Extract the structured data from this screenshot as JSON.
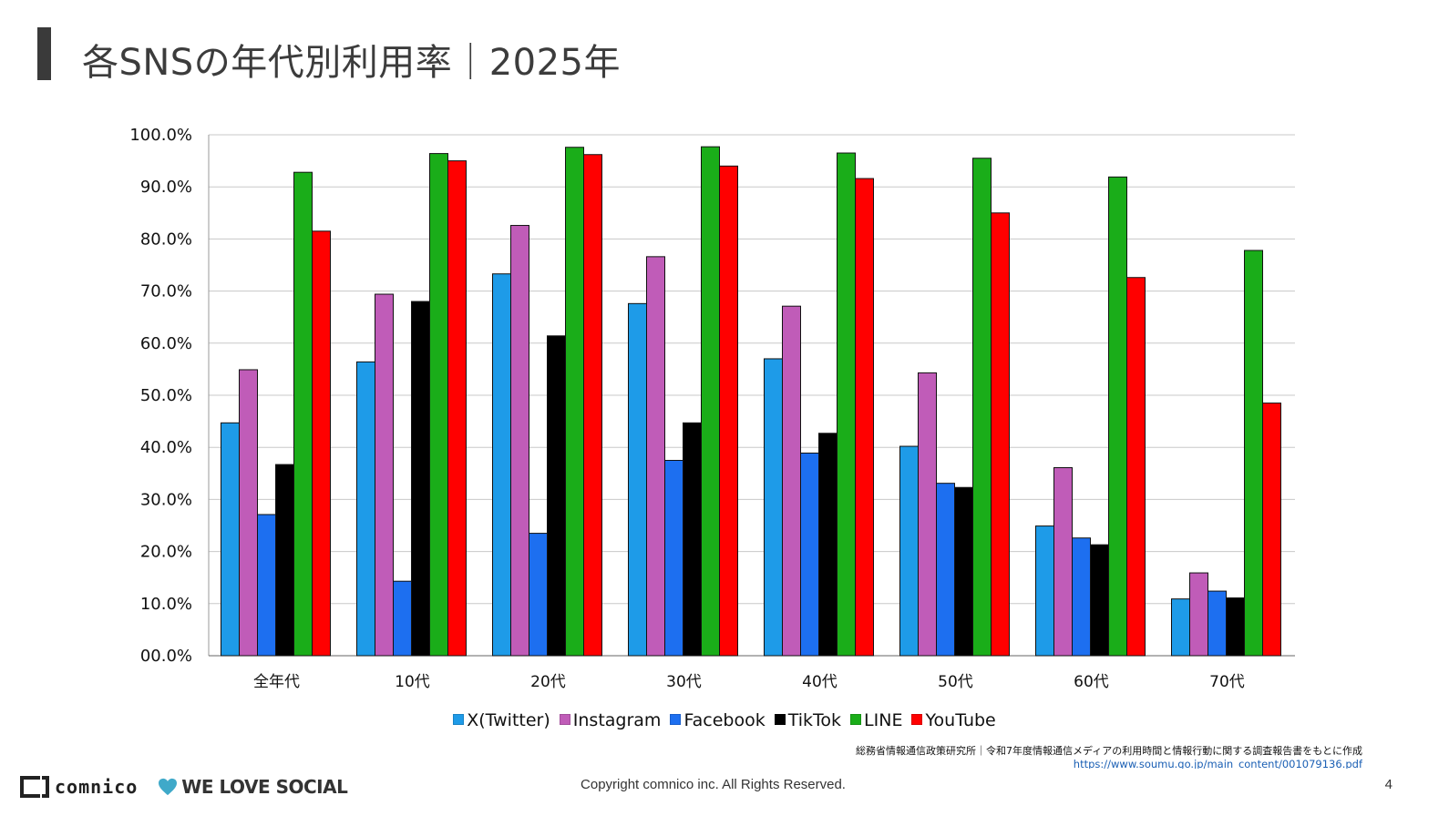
{
  "page": {
    "title": "各SNSの年代別利用率｜2025年",
    "page_number": "4",
    "copyright": "Copyright comnico inc. All Rights Reserved.",
    "source_text": "総務省情報通信政策研究所｜令和7年度情報通信メディアの利用時間と情報行動に関する調査報告書をもとに作成",
    "source_url": "https://www.soumu.go.jp/main_content/001079136.pdf",
    "logo_text": "comnico",
    "tagline": "WE LOVE SOCIAL",
    "heart_icon": "heart-icon",
    "heart_color": "#3fa9c9"
  },
  "chart_data": {
    "type": "bar",
    "title": "",
    "xlabel": "",
    "ylabel": "",
    "categories": [
      "全年代",
      "10代",
      "20代",
      "30代",
      "40代",
      "50代",
      "60代",
      "70代"
    ],
    "ylim": [
      0,
      100
    ],
    "yticks": [
      "00.0%",
      "10.0%",
      "20.0%",
      "30.0%",
      "40.0%",
      "50.0%",
      "60.0%",
      "70.0%",
      "80.0%",
      "90.0%",
      "100.0%"
    ],
    "grid": true,
    "legend_position": "bottom",
    "series": [
      {
        "name": "X(Twitter)",
        "color": "#1e9be8",
        "values": [
          44.7,
          56.4,
          73.3,
          67.6,
          57.0,
          40.2,
          24.9,
          10.9
        ]
      },
      {
        "name": "Instagram",
        "color": "#c05cb8",
        "values": [
          54.9,
          69.4,
          82.6,
          76.6,
          67.1,
          54.3,
          36.1,
          15.9
        ]
      },
      {
        "name": "Facebook",
        "color": "#1d6ff0",
        "values": [
          27.1,
          14.3,
          23.5,
          37.5,
          38.9,
          33.1,
          22.6,
          12.4
        ]
      },
      {
        "name": "TikTok",
        "color": "#000000",
        "values": [
          36.7,
          68.0,
          61.4,
          44.7,
          42.7,
          32.3,
          21.3,
          11.1
        ]
      },
      {
        "name": "LINE",
        "color": "#1aad19",
        "values": [
          92.8,
          96.4,
          97.6,
          97.7,
          96.5,
          95.5,
          91.9,
          77.8
        ]
      },
      {
        "name": "YouTube",
        "color": "#ff0000",
        "values": [
          81.5,
          95.0,
          96.2,
          94.0,
          91.6,
          85.0,
          72.6,
          48.5
        ]
      }
    ]
  }
}
